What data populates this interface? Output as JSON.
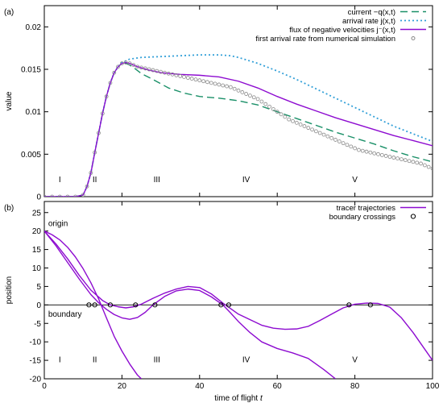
{
  "chart_data": [
    {
      "type": "line",
      "panel_label": "(a)",
      "xlabel": "",
      "ylabel": "value",
      "xlim": [
        0,
        100
      ],
      "ylim": [
        0,
        0.0225
      ],
      "x_ticks": [
        0,
        20,
        40,
        60,
        80,
        100
      ],
      "y_ticks": [
        0,
        0.005,
        0.01,
        0.015,
        0.02
      ],
      "y_tick_labels": [
        "0",
        "0.005",
        "0.01",
        "0.015",
        "0.02"
      ],
      "grid": false,
      "legend_position": "top-right",
      "region_labels": [
        {
          "text": "I",
          "x": 4
        },
        {
          "text": "II",
          "x": 13
        },
        {
          "text": "III",
          "x": 29
        },
        {
          "text": "IV",
          "x": 52
        },
        {
          "text": "V",
          "x": 80
        }
      ],
      "series": [
        {
          "name": "current −q(x,t)",
          "style": "dashed",
          "color": "#1a9068",
          "x": [
            0,
            6,
            8,
            10,
            11,
            12,
            13,
            14,
            15,
            16,
            17,
            18,
            19,
            20,
            21,
            22,
            23,
            25,
            28,
            32,
            36,
            40,
            45,
            50,
            55,
            60,
            65,
            70,
            75,
            80,
            85,
            90,
            95,
            100
          ],
          "y": [
            0,
            0,
            0,
            0.0002,
            0.0012,
            0.0028,
            0.0052,
            0.0075,
            0.0098,
            0.0118,
            0.0134,
            0.0146,
            0.0153,
            0.0157,
            0.0157,
            0.0155,
            0.0152,
            0.0145,
            0.0138,
            0.0128,
            0.0122,
            0.0118,
            0.0116,
            0.0113,
            0.0108,
            0.01,
            0.0092,
            0.0084,
            0.0076,
            0.0069,
            0.0062,
            0.0054,
            0.0047,
            0.0041
          ]
        },
        {
          "name": "arrival rate j(x,t)",
          "style": "dotted",
          "color": "#33a0d8",
          "x": [
            0,
            6,
            8,
            10,
            11,
            12,
            13,
            14,
            15,
            16,
            17,
            18,
            19,
            20,
            21,
            22,
            25,
            30,
            35,
            40,
            45,
            48,
            50,
            55,
            60,
            65,
            70,
            75,
            80,
            85,
            90,
            95,
            100
          ],
          "y": [
            0,
            0,
            0,
            0.0002,
            0.0012,
            0.0028,
            0.0052,
            0.0075,
            0.0098,
            0.0118,
            0.0134,
            0.0146,
            0.0153,
            0.0158,
            0.016,
            0.0162,
            0.0164,
            0.0165,
            0.0166,
            0.0167,
            0.0167,
            0.0166,
            0.0164,
            0.0157,
            0.0148,
            0.0138,
            0.0127,
            0.0116,
            0.0105,
            0.0094,
            0.0083,
            0.0074,
            0.0065
          ]
        },
        {
          "name": "flux of negative velocities j⁻(x,t)",
          "style": "solid",
          "color": "#8d0bd0",
          "x": [
            0,
            6,
            8,
            10,
            11,
            12,
            13,
            14,
            15,
            16,
            17,
            18,
            19,
            20,
            21,
            22,
            24,
            27,
            30,
            35,
            40,
            45,
            50,
            55,
            60,
            65,
            70,
            75,
            80,
            85,
            90,
            95,
            100
          ],
          "y": [
            0,
            0,
            0,
            0.0002,
            0.0012,
            0.0028,
            0.0052,
            0.0075,
            0.0098,
            0.0118,
            0.0134,
            0.0146,
            0.0153,
            0.0157,
            0.0158,
            0.0157,
            0.0153,
            0.0149,
            0.0146,
            0.0144,
            0.0143,
            0.0141,
            0.0136,
            0.0128,
            0.0118,
            0.0109,
            0.0101,
            0.0093,
            0.0086,
            0.0079,
            0.0072,
            0.0066,
            0.006
          ]
        },
        {
          "name": "first arrival rate from numerical simulation",
          "style": "circles",
          "color": "#888888",
          "x": [
            0,
            2,
            4,
            6,
            8,
            10,
            11,
            12,
            13,
            14,
            15,
            16,
            17,
            18,
            19,
            20,
            21,
            22,
            23,
            24,
            25,
            26,
            27,
            28,
            29,
            30,
            31,
            32,
            33,
            34,
            35,
            36,
            37,
            38,
            39,
            40,
            41,
            42,
            43,
            44,
            45,
            46,
            47,
            48,
            49,
            50,
            51,
            52,
            53,
            54,
            55,
            56,
            57,
            58,
            59,
            60,
            61,
            62,
            63,
            64,
            65,
            66,
            67,
            68,
            69,
            70,
            71,
            72,
            73,
            74,
            75,
            76,
            77,
            78,
            79,
            80,
            81,
            82,
            83,
            84,
            85,
            86,
            87,
            88,
            89,
            90,
            91,
            92,
            93,
            94,
            95,
            96,
            97,
            98,
            99,
            100
          ],
          "y": [
            0,
            0,
            0,
            0,
            0,
            0.0002,
            0.0012,
            0.0028,
            0.0052,
            0.0075,
            0.0098,
            0.0118,
            0.0134,
            0.0146,
            0.0153,
            0.0157,
            0.0158,
            0.0157,
            0.0155,
            0.0153,
            0.0152,
            0.0151,
            0.015,
            0.0149,
            0.0148,
            0.0147,
            0.0146,
            0.0145,
            0.0144,
            0.0143,
            0.0142,
            0.0141,
            0.014,
            0.0139,
            0.0138,
            0.0137,
            0.0136,
            0.0135,
            0.0134,
            0.0133,
            0.0132,
            0.0131,
            0.013,
            0.0129,
            0.0127,
            0.0125,
            0.0123,
            0.0121,
            0.0119,
            0.0117,
            0.0115,
            0.0112,
            0.0109,
            0.0106,
            0.0103,
            0.01,
            0.0097,
            0.0094,
            0.0091,
            0.0089,
            0.0087,
            0.0085,
            0.0083,
            0.0081,
            0.0079,
            0.0077,
            0.0075,
            0.0073,
            0.0071,
            0.0069,
            0.0067,
            0.0065,
            0.0063,
            0.0061,
            0.0059,
            0.0057,
            0.0055,
            0.0054,
            0.0053,
            0.0052,
            0.0051,
            0.005,
            0.0049,
            0.0048,
            0.0047,
            0.0046,
            0.0045,
            0.0044,
            0.0043,
            0.0042,
            0.0041,
            0.004,
            0.0039,
            0.0037,
            0.0035,
            0.0033
          ]
        }
      ]
    },
    {
      "type": "line",
      "panel_label": "(b)",
      "xlabel": "time of flight t",
      "ylabel": "position",
      "xlim": [
        0,
        100
      ],
      "ylim": [
        -20,
        28
      ],
      "x_ticks": [
        0,
        20,
        40,
        60,
        80,
        100
      ],
      "y_ticks": [
        -20,
        -15,
        -10,
        -5,
        0,
        5,
        10,
        15,
        20,
        25
      ],
      "grid": false,
      "legend_position": "top-right",
      "boundary_y": 0,
      "annotations": [
        {
          "text": "origin",
          "x": 1,
          "y": 22
        },
        {
          "text": "boundary",
          "x": 1,
          "y": -2.5
        }
      ],
      "region_labels": [
        {
          "text": "I",
          "x": 4
        },
        {
          "text": "II",
          "x": 13
        },
        {
          "text": "III",
          "x": 29
        },
        {
          "text": "IV",
          "x": 52
        },
        {
          "text": "V",
          "x": 80
        }
      ],
      "series": [
        {
          "name": "tracer trajectories",
          "style": "solid",
          "color": "#8d0bd0",
          "x": [
            0,
            3,
            6,
            9,
            12,
            15,
            17,
            19,
            21,
            23,
            25,
            28,
            31,
            34,
            37,
            40,
            43,
            46,
            48,
            50,
            53,
            56,
            59,
            62,
            65,
            68,
            71,
            74,
            77,
            80,
            83,
            86,
            89,
            92,
            95,
            98,
            100
          ],
          "y": [
            20,
            16.5,
            12.5,
            8,
            4,
            1.2,
            0,
            -0.5,
            -0.8,
            -0.5,
            0.2,
            1.8,
            3.2,
            4.3,
            5,
            4.7,
            3,
            0.5,
            -1,
            -2.5,
            -4,
            -5.5,
            -6.3,
            -6.6,
            -6.5,
            -5.8,
            -4.2,
            -2.5,
            -0.8,
            0.2,
            0.5,
            0.4,
            -0.6,
            -3.5,
            -7.5,
            -12,
            -15
          ]
        },
        {
          "name": "",
          "style": "solid",
          "color": "#8d0bd0",
          "x": [
            0,
            3,
            6,
            9,
            12,
            14,
            16,
            18,
            20,
            22,
            24,
            26,
            28,
            31,
            34,
            37,
            40,
            43,
            46,
            48,
            50,
            53,
            56,
            60,
            64,
            68,
            72,
            75
          ],
          "y": [
            20,
            16,
            11.5,
            7,
            2.8,
            0.6,
            -1.2,
            -2.6,
            -3.5,
            -3.9,
            -3.4,
            -2,
            0,
            2.3,
            3.8,
            4.3,
            3.9,
            2.2,
            0,
            -2.2,
            -4.5,
            -7.5,
            -10,
            -11.8,
            -13,
            -14.5,
            -17.5,
            -20
          ]
        },
        {
          "name": "",
          "style": "solid",
          "color": "#8d0bd0",
          "x": [
            0,
            2,
            4,
            6,
            8,
            10,
            12,
            14,
            16,
            18,
            20,
            22,
            24,
            25
          ],
          "y": [
            20,
            19,
            17.6,
            15.6,
            13,
            9.8,
            6,
            1.6,
            -3.5,
            -8.5,
            -12.5,
            -16,
            -19,
            -20
          ]
        },
        {
          "name": "boundary crossings",
          "style": "points",
          "color": "#000000",
          "x": [
            11.5,
            13,
            17,
            23.5,
            28.5,
            45.5,
            47.5,
            78.5,
            84
          ],
          "y": [
            0,
            0,
            0,
            0,
            0,
            0,
            0,
            0,
            0
          ]
        }
      ]
    }
  ]
}
